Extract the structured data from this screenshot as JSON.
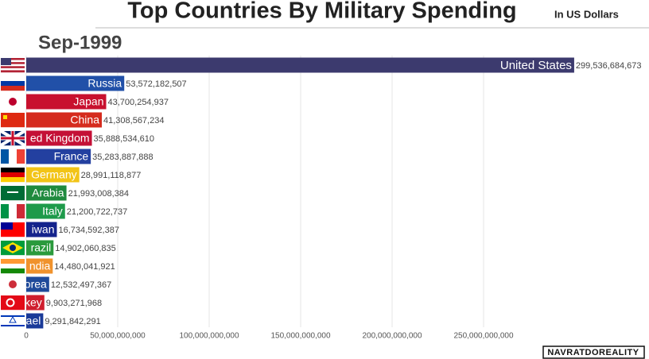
{
  "chart_data": {
    "type": "bar",
    "orientation": "horizontal",
    "title": "Top Countries By Military Spending",
    "subtitle": "In US Dollars",
    "date_label": "Sep-1999",
    "watermark": "NAVRATDOREALITY",
    "categories": [
      "United States",
      "Russia",
      "Japan",
      "China",
      "ed Kingdom",
      "France",
      "Germany",
      "Arabia",
      "Italy",
      "iwan",
      "razil",
      "ndia",
      "orea",
      "key",
      "ael"
    ],
    "values": [
      299536684673,
      53572182507,
      43700254937,
      41308567234,
      35888534610,
      35283887888,
      28991118877,
      21993008384,
      21200722737,
      16734592387,
      14902060835,
      14480041921,
      12532497367,
      9903271968,
      9291842291
    ],
    "value_labels": [
      "299,536,684,673",
      "53,572,182,507",
      "43,700,254,937",
      "41,308,567,234",
      "35,888,534,610",
      "35,283,887,888",
      "28,991,118,877",
      "21,993,008,384",
      "21,200,722,737",
      "16,734,592,387",
      "14,902,060,835",
      "14,480,041,921",
      "12,532,497,367",
      "9,903,271,968",
      "9,291,842,291"
    ],
    "colors": [
      "#3c3a6e",
      "#2150a8",
      "#c8102e",
      "#d52b1e",
      "#c41036",
      "#2340a0",
      "#f2c417",
      "#1f8a3e",
      "#1e9a4a",
      "#14238c",
      "#2a9a3c",
      "#f0922c",
      "#1f4a9a",
      "#cf1e2e",
      "#1a3a98"
    ],
    "xlim": [
      0,
      300000000000
    ],
    "xticks": [
      0,
      {
        "value": 50000000000,
        "label": "50,000,000,000"
      },
      {
        "value": 100000000000,
        "label": "100,000,000,000"
      },
      {
        "value": 150000000000,
        "label": "150,000,000,000"
      },
      {
        "value": 200000000000,
        "label": "200,000,000,000"
      },
      {
        "value": 250000000000,
        "label": "250,000,000,000"
      }
    ],
    "grid": true
  }
}
